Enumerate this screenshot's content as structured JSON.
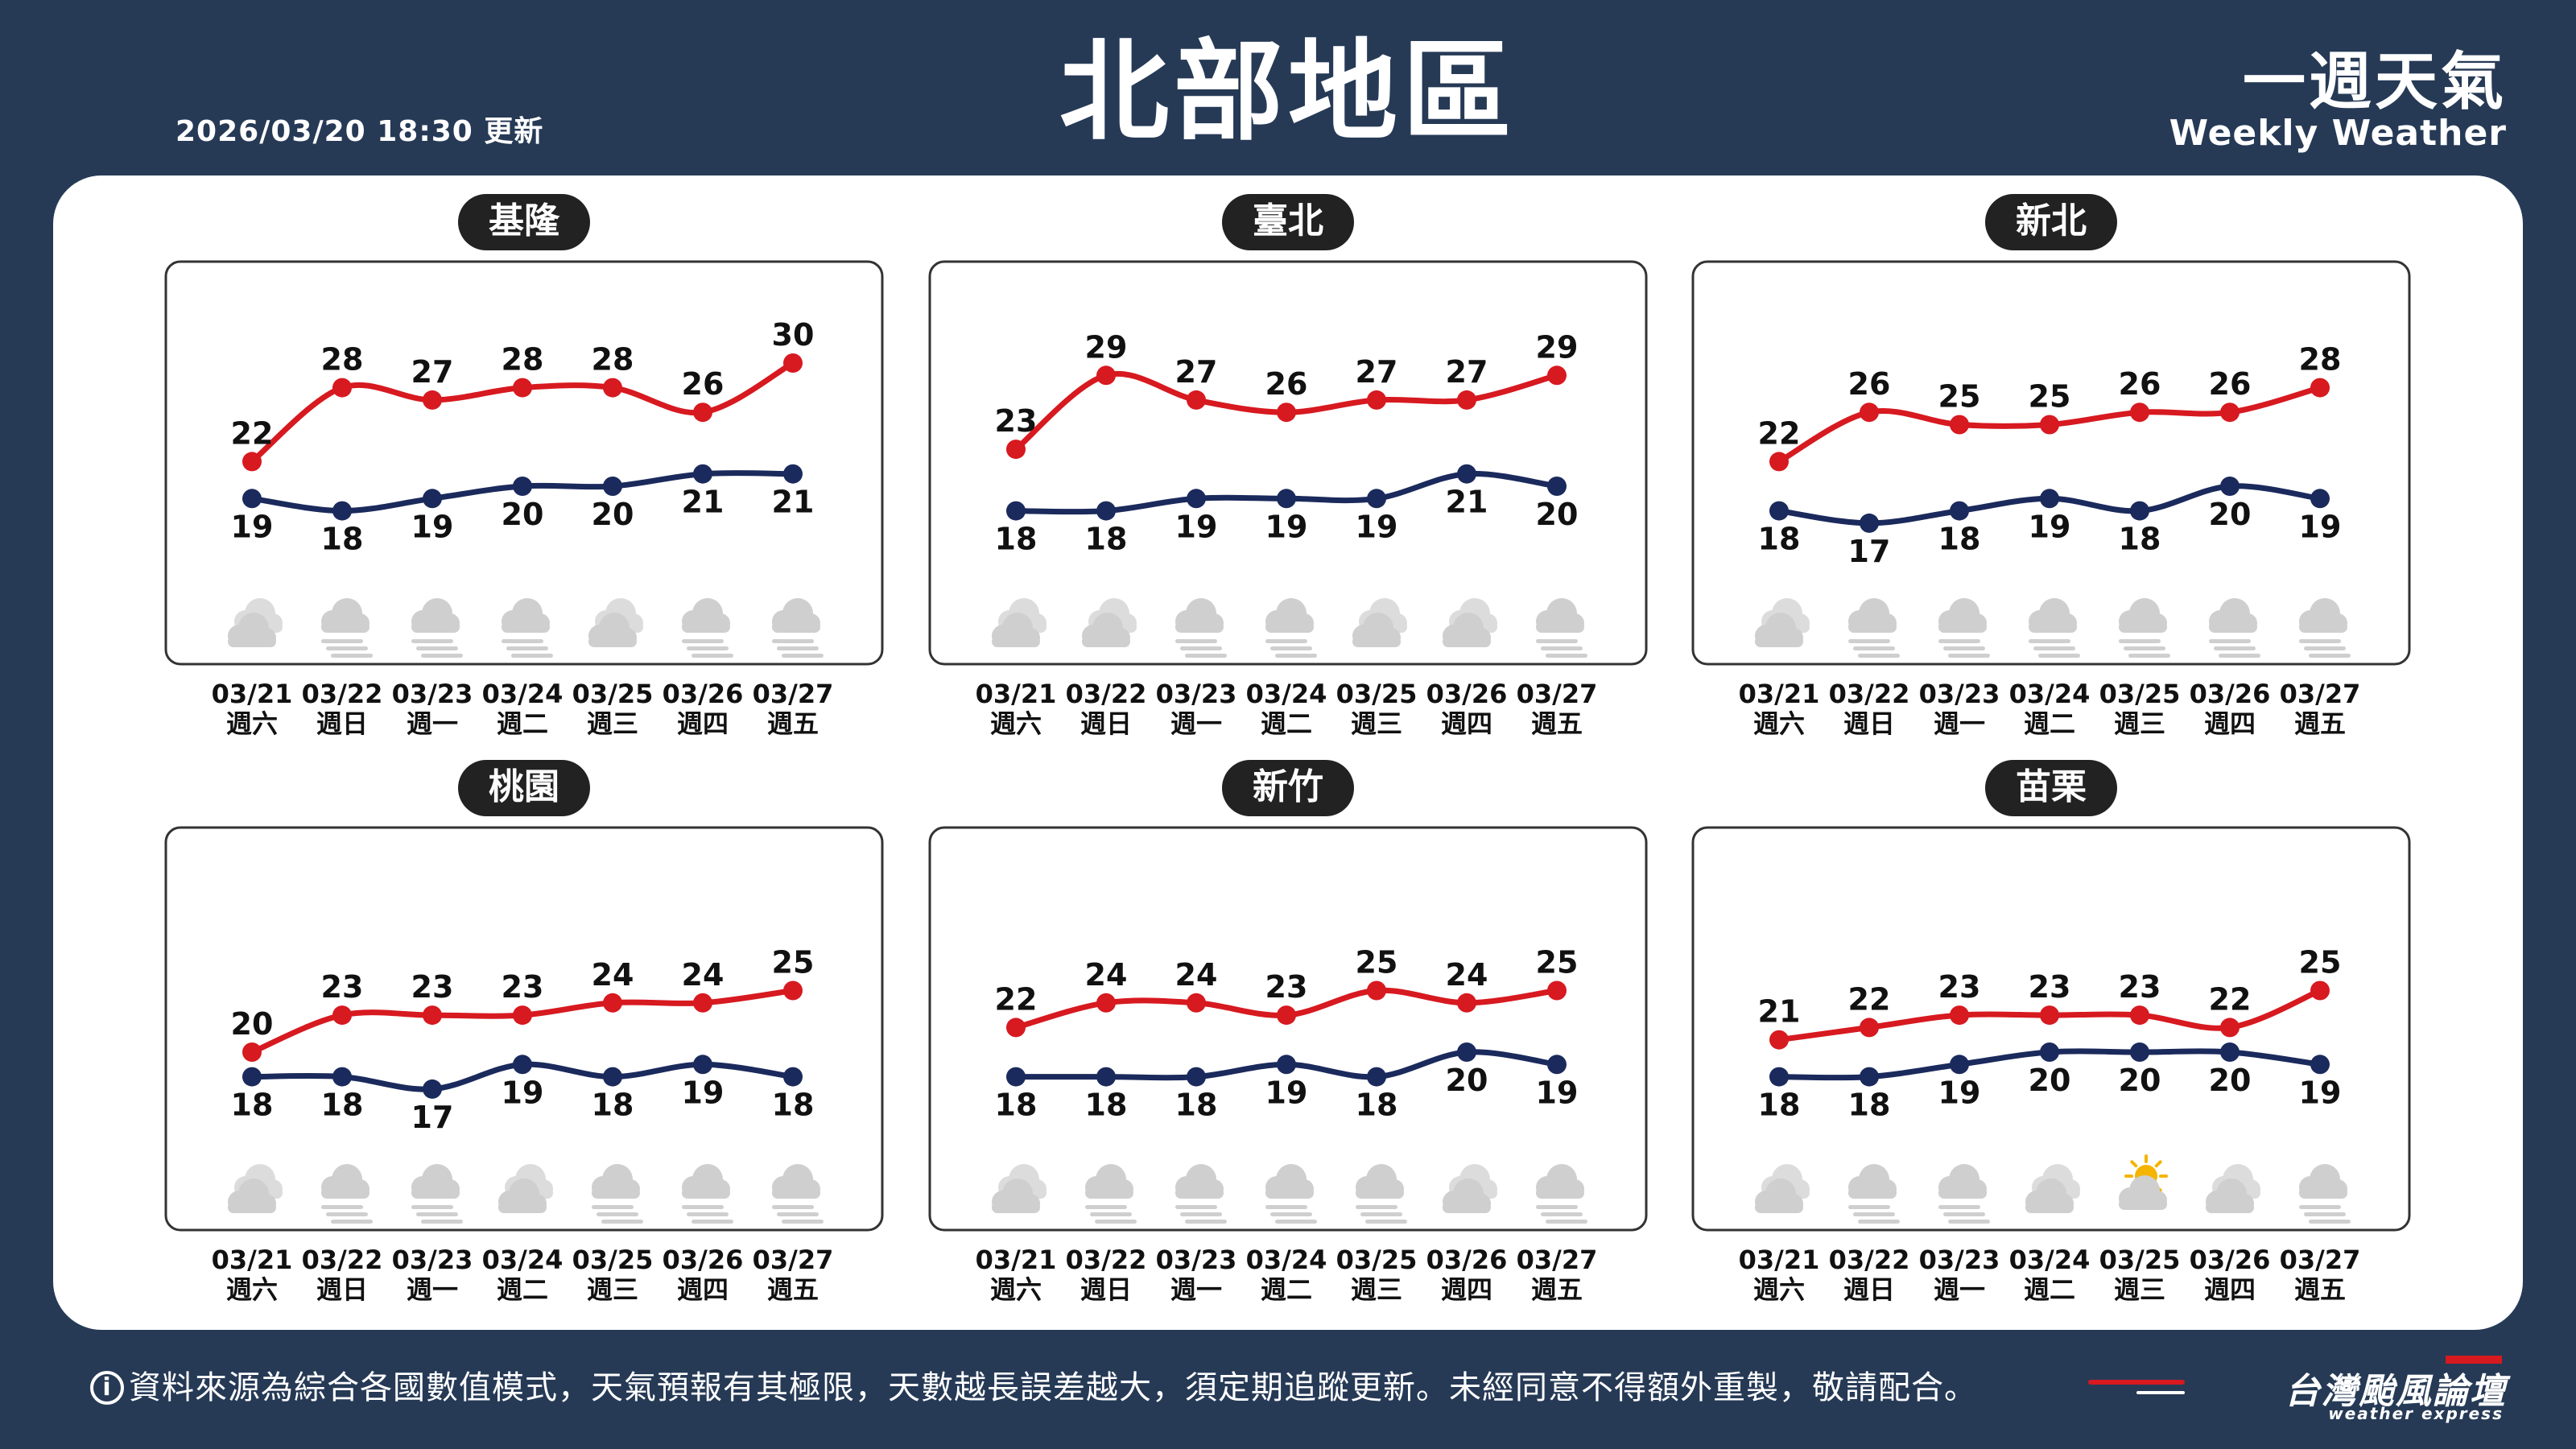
{
  "header": {
    "updated": "2026/03/20 18:30 更新",
    "title": "北部地區",
    "brand_zh": "一週天氣",
    "brand_en": "Weekly Weather"
  },
  "colors": {
    "background": "#263a56",
    "card": "#ffffff",
    "high": "#d71920",
    "low": "#1b2a5c",
    "label_pill": "#222222",
    "icon": "#cfcfcf"
  },
  "footer": {
    "disclaimer": "資料來源為綜合各國數值模式，天氣預報有其極限，天數越長誤差越大，須定期追蹤更新。未經同意不得額外重製，敬請配合。",
    "logo_text": "台灣颱風論壇",
    "logo_en": "weather express",
    "info_icon": "i"
  },
  "chart_data": [
    {
      "type": "line",
      "title": "基隆",
      "categories": [
        "03/21",
        "03/22",
        "03/23",
        "03/24",
        "03/25",
        "03/26",
        "03/27"
      ],
      "weekdays": [
        "週六",
        "週日",
        "週一",
        "週二",
        "週三",
        "週四",
        "週五"
      ],
      "series": [
        {
          "values": [
            22,
            28,
            27,
            28,
            28,
            26,
            30
          ]
        },
        {
          "values": [
            19,
            18,
            19,
            20,
            20,
            21,
            21
          ]
        }
      ],
      "icons": [
        "partly-cloudy-icon",
        "rain-icon",
        "rain-icon",
        "rain-icon",
        "partly-cloudy-icon",
        "rain-icon",
        "rain-icon"
      ]
    },
    {
      "type": "line",
      "title": "臺北",
      "categories": [
        "03/21",
        "03/22",
        "03/23",
        "03/24",
        "03/25",
        "03/26",
        "03/27"
      ],
      "weekdays": [
        "週六",
        "週日",
        "週一",
        "週二",
        "週三",
        "週四",
        "週五"
      ],
      "series": [
        {
          "values": [
            23,
            29,
            27,
            26,
            27,
            27,
            29
          ]
        },
        {
          "values": [
            18,
            18,
            19,
            19,
            19,
            21,
            20
          ]
        }
      ],
      "icons": [
        "partly-cloudy-icon",
        "partly-cloudy-icon",
        "rain-icon",
        "rain-icon",
        "partly-cloudy-icon",
        "partly-cloudy-icon",
        "rain-icon"
      ]
    },
    {
      "type": "line",
      "title": "新北",
      "categories": [
        "03/21",
        "03/22",
        "03/23",
        "03/24",
        "03/25",
        "03/26",
        "03/27"
      ],
      "weekdays": [
        "週六",
        "週日",
        "週一",
        "週二",
        "週三",
        "週四",
        "週五"
      ],
      "series": [
        {
          "values": [
            22,
            26,
            25,
            25,
            26,
            26,
            28
          ]
        },
        {
          "values": [
            18,
            17,
            18,
            19,
            18,
            20,
            19
          ]
        }
      ],
      "icons": [
        "partly-cloudy-icon",
        "rain-icon",
        "rain-icon",
        "rain-icon",
        "rain-icon",
        "rain-icon",
        "rain-icon"
      ]
    },
    {
      "type": "line",
      "title": "桃園",
      "categories": [
        "03/21",
        "03/22",
        "03/23",
        "03/24",
        "03/25",
        "03/26",
        "03/27"
      ],
      "weekdays": [
        "週六",
        "週日",
        "週一",
        "週二",
        "週三",
        "週四",
        "週五"
      ],
      "series": [
        {
          "values": [
            20,
            23,
            23,
            23,
            24,
            24,
            25
          ]
        },
        {
          "values": [
            18,
            18,
            17,
            19,
            18,
            19,
            18
          ]
        }
      ],
      "icons": [
        "partly-cloudy-icon",
        "rain-icon",
        "rain-icon",
        "partly-cloudy-icon",
        "rain-icon",
        "rain-icon",
        "rain-icon"
      ]
    },
    {
      "type": "line",
      "title": "新竹",
      "categories": [
        "03/21",
        "03/22",
        "03/23",
        "03/24",
        "03/25",
        "03/26",
        "03/27"
      ],
      "weekdays": [
        "週六",
        "週日",
        "週一",
        "週二",
        "週三",
        "週四",
        "週五"
      ],
      "series": [
        {
          "values": [
            22,
            24,
            24,
            23,
            25,
            24,
            25
          ]
        },
        {
          "values": [
            18,
            18,
            18,
            19,
            18,
            20,
            19
          ]
        }
      ],
      "icons": [
        "partly-cloudy-icon",
        "rain-icon",
        "rain-icon",
        "rain-icon",
        "rain-icon",
        "partly-cloudy-icon",
        "rain-icon"
      ]
    },
    {
      "type": "line",
      "title": "苗栗",
      "categories": [
        "03/21",
        "03/22",
        "03/23",
        "03/24",
        "03/25",
        "03/26",
        "03/27"
      ],
      "weekdays": [
        "週六",
        "週日",
        "週一",
        "週二",
        "週三",
        "週四",
        "週五"
      ],
      "series": [
        {
          "values": [
            21,
            22,
            23,
            23,
            23,
            22,
            25
          ]
        },
        {
          "values": [
            18,
            18,
            19,
            20,
            20,
            20,
            19
          ]
        }
      ],
      "icons": [
        "partly-cloudy-icon",
        "rain-icon",
        "rain-icon",
        "partly-cloudy-icon",
        "sun-cloud-icon",
        "partly-cloudy-icon",
        "rain-icon"
      ]
    }
  ]
}
